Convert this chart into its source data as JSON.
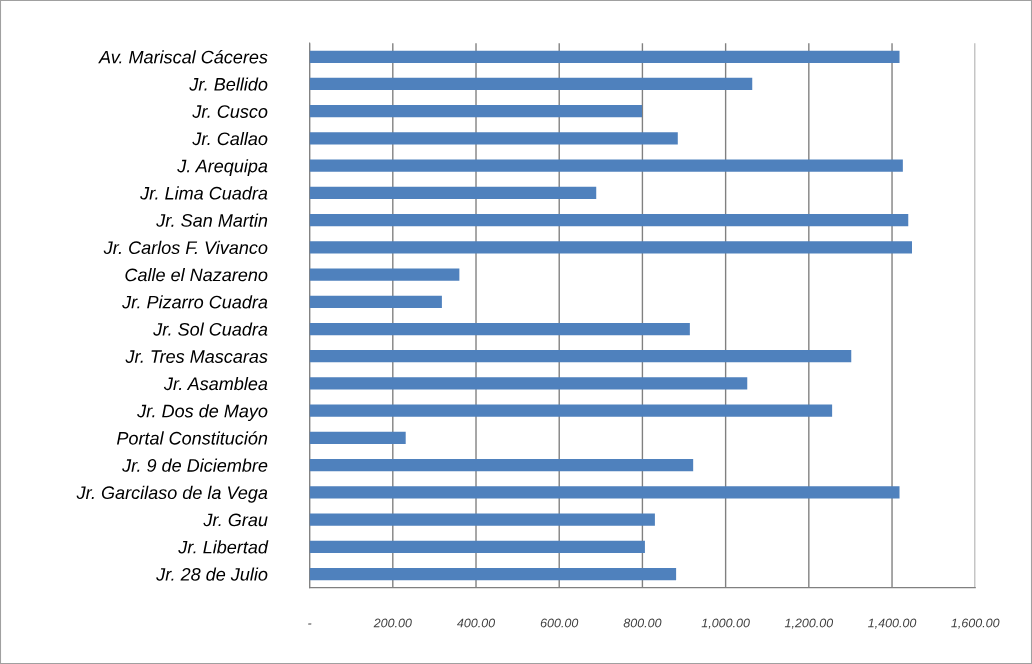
{
  "chart_data": {
    "type": "bar",
    "orientation": "horizontal",
    "categories": [
      "Av. Mariscal Cáceres",
      "Jr. Bellido",
      "Jr. Cusco",
      "Jr. Callao",
      "J. Arequipa",
      "Jr. Lima Cuadra",
      "Jr. San Martin",
      "Jr. Carlos F. Vivanco",
      "Calle el Nazareno",
      "Jr. Pizarro Cuadra",
      "Jr. Sol Cuadra",
      "Jr. Tres Mascaras",
      "Jr. Asamblea",
      "Jr. Dos de Mayo",
      "Portal Constitución",
      "Jr. 9 de Diciembre",
      "Jr. Garcilaso de la Vega",
      "Jr. Grau",
      "Jr. Libertad",
      "Jr. 28 de Julio"
    ],
    "values": [
      1418,
      1064,
      799,
      885,
      1426,
      689,
      1439,
      1448,
      360,
      318,
      914,
      1302,
      1052,
      1256,
      231,
      922,
      1418,
      830,
      806,
      881
    ],
    "color": "#4f81bd",
    "xlim": [
      0,
      1600
    ],
    "xticks": [
      {
        "value": 0,
        "label": "-"
      },
      {
        "value": 200,
        "label": "200.00"
      },
      {
        "value": 400,
        "label": "400.00"
      },
      {
        "value": 600,
        "label": "600.00"
      },
      {
        "value": 800,
        "label": "800.00"
      },
      {
        "value": 1000,
        "label": "1,000.00"
      },
      {
        "value": 1200,
        "label": "1,200.00"
      },
      {
        "value": 1400,
        "label": "1,400.00"
      },
      {
        "value": 1600,
        "label": "1,600.00"
      }
    ],
    "grid": "x"
  }
}
